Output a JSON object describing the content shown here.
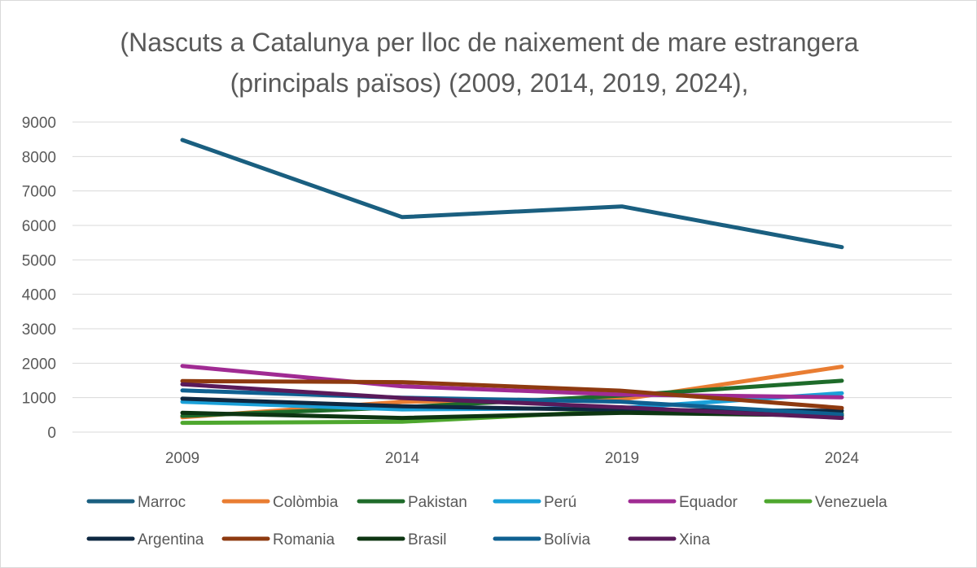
{
  "chart_data": {
    "type": "line",
    "title": "(Nascuts a Catalunya per lloc de naixement de mare estrangera (principals països) (2009, 2014, 2019, 2024),",
    "categories": [
      "2009",
      "2014",
      "2019",
      "2024"
    ],
    "ylim": [
      0,
      9000
    ],
    "yticks": [
      0,
      1000,
      2000,
      3000,
      4000,
      5000,
      6000,
      7000,
      8000,
      9000
    ],
    "grid": true,
    "legend_position": "bottom",
    "series": [
      {
        "name": "Marroc",
        "color": "#1a5f80",
        "values": [
          8480,
          6240,
          6550,
          5370
        ]
      },
      {
        "name": "Colòmbia",
        "color": "#e97d32",
        "values": [
          430,
          880,
          950,
          1900
        ]
      },
      {
        "name": "Pakistan",
        "color": "#1e6b2a",
        "values": [
          470,
          720,
          1060,
          1490
        ]
      },
      {
        "name": "Perú",
        "color": "#1aa0d8",
        "values": [
          880,
          660,
          700,
          1130
        ]
      },
      {
        "name": "Equador",
        "color": "#a02b93",
        "values": [
          1920,
          1330,
          1090,
          1010
        ]
      },
      {
        "name": "Venezuela",
        "color": "#4ea72e",
        "values": [
          270,
          300,
          620,
          540
        ]
      },
      {
        "name": "Argentina",
        "color": "#0e2841",
        "values": [
          970,
          750,
          640,
          620
        ]
      },
      {
        "name": "Romania",
        "color": "#8e3a10",
        "values": [
          1480,
          1450,
          1200,
          700
        ]
      },
      {
        "name": "Brasil",
        "color": "#0d3512",
        "values": [
          560,
          410,
          560,
          480
        ]
      },
      {
        "name": "Bolívia",
        "color": "#0f6091",
        "values": [
          1210,
          1000,
          880,
          510
        ]
      },
      {
        "name": "Xina",
        "color": "#5a1a5a",
        "values": [
          1390,
          990,
          720,
          410
        ]
      }
    ]
  }
}
